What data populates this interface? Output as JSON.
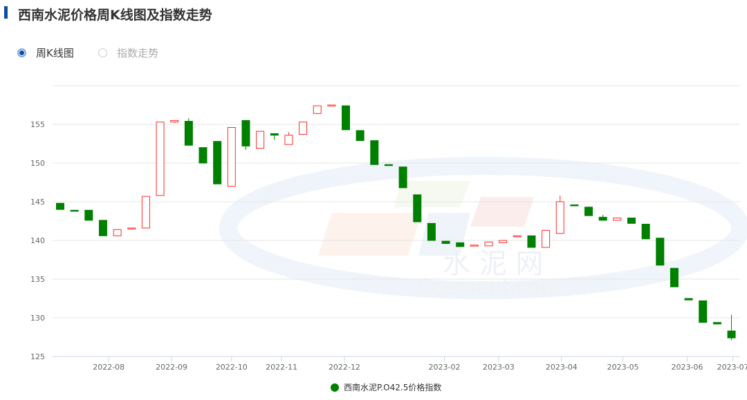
{
  "header": {
    "title": "西南水泥价格周K线图及指数走势"
  },
  "view_toggle": {
    "options": [
      {
        "label": "周K线图",
        "selected": true
      },
      {
        "label": "指数走势",
        "selected": false
      }
    ]
  },
  "watermark": {
    "cn": "水 泥 网",
    "en": "Ccement.com"
  },
  "colors": {
    "up": "#ff2a2a",
    "down": "#008000",
    "accent": "#0b4ea2",
    "grid": "#e6e6e6"
  },
  "chart_data": {
    "type": "candlestick",
    "title": "",
    "xlabel": "",
    "ylabel": "",
    "ylim": [
      125,
      160
    ],
    "yticks": [
      125,
      130,
      135,
      140,
      145,
      150,
      155
    ],
    "grid": true,
    "legend_position": "bottom",
    "x_tick_labels": [
      {
        "label": "2022-08",
        "index": 3.4
      },
      {
        "label": "2022-09",
        "index": 7.8
      },
      {
        "label": "2022-10",
        "index": 12.0
      },
      {
        "label": "2022-11",
        "index": 15.5
      },
      {
        "label": "2022-12",
        "index": 19.9
      },
      {
        "label": "2023-02",
        "index": 26.9
      },
      {
        "label": "2023-03",
        "index": 30.7
      },
      {
        "label": "2023-04",
        "index": 35.1
      },
      {
        "label": "2023-05",
        "index": 39.4
      },
      {
        "label": "2023-06",
        "index": 43.9
      },
      {
        "label": "2023-07",
        "index": 47.1
      }
    ],
    "series": [
      {
        "name": "西南水泥P.O42.5价格指数",
        "ohlc": [
          [
            144.8,
            144.0,
            144.0,
            144.8
          ],
          [
            143.9,
            143.8,
            143.8,
            143.9
          ],
          [
            143.9,
            142.6,
            142.6,
            143.9
          ],
          [
            142.6,
            140.6,
            140.6,
            142.6
          ],
          [
            140.6,
            141.4,
            140.6,
            141.4
          ],
          [
            141.5,
            141.6,
            141.5,
            141.6
          ],
          [
            141.6,
            145.7,
            141.6,
            145.7
          ],
          [
            145.8,
            155.3,
            145.8,
            155.3
          ],
          [
            155.3,
            155.5,
            155.2,
            155.5
          ],
          [
            155.4,
            152.3,
            152.3,
            155.8
          ],
          [
            152.0,
            150.0,
            150.0,
            152.0
          ],
          [
            152.8,
            147.3,
            147.3,
            152.8
          ],
          [
            147.0,
            154.6,
            147.0,
            154.6
          ],
          [
            155.5,
            152.2,
            151.7,
            155.5
          ],
          [
            151.9,
            154.1,
            151.9,
            154.1
          ],
          [
            153.8,
            153.6,
            153.0,
            153.8
          ],
          [
            152.4,
            153.6,
            152.4,
            154.0
          ],
          [
            153.7,
            155.3,
            153.7,
            155.3
          ],
          [
            156.4,
            157.4,
            156.4,
            157.4
          ],
          [
            157.4,
            157.5,
            157.4,
            157.5
          ],
          [
            157.4,
            154.3,
            154.3,
            157.4
          ],
          [
            154.2,
            152.9,
            152.9,
            154.2
          ],
          [
            152.9,
            149.8,
            149.8,
            152.9
          ],
          [
            149.8,
            149.7,
            149.7,
            149.8
          ],
          [
            149.5,
            146.8,
            146.8,
            149.5
          ],
          [
            145.9,
            142.4,
            142.4,
            145.9
          ],
          [
            142.2,
            140.0,
            140.0,
            142.2
          ],
          [
            139.9,
            139.6,
            139.6,
            139.9
          ],
          [
            139.7,
            139.2,
            139.2,
            139.7
          ],
          [
            139.3,
            139.4,
            139.3,
            139.4
          ],
          [
            139.3,
            139.8,
            139.3,
            139.8
          ],
          [
            139.7,
            140.0,
            139.7,
            140.0
          ],
          [
            140.5,
            140.6,
            140.5,
            140.6
          ],
          [
            140.6,
            139.1,
            139.1,
            140.6
          ],
          [
            139.1,
            141.3,
            139.1,
            141.3
          ],
          [
            140.9,
            145.0,
            140.9,
            145.8
          ],
          [
            144.6,
            144.5,
            144.5,
            144.6
          ],
          [
            144.3,
            143.2,
            143.2,
            144.4
          ],
          [
            143.0,
            142.6,
            142.6,
            143.3
          ],
          [
            142.6,
            142.9,
            142.6,
            142.9
          ],
          [
            142.9,
            142.2,
            142.2,
            142.9
          ],
          [
            142.1,
            140.2,
            140.2,
            142.1
          ],
          [
            140.3,
            136.8,
            136.8,
            140.3
          ],
          [
            136.4,
            134.0,
            134.0,
            136.4
          ],
          [
            132.5,
            132.3,
            132.3,
            132.5
          ],
          [
            132.2,
            129.4,
            129.4,
            132.2
          ],
          [
            129.4,
            129.2,
            129.2,
            129.4
          ],
          [
            128.3,
            127.4,
            127.1,
            130.4
          ]
        ]
      }
    ]
  }
}
